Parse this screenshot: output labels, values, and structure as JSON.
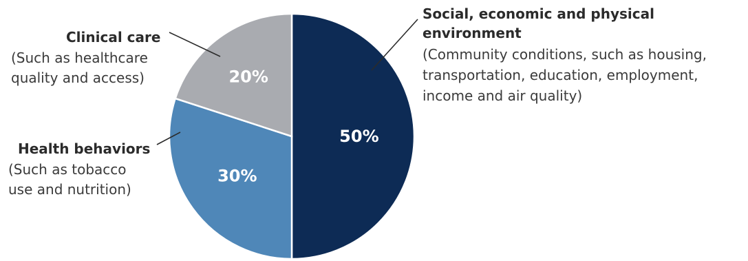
{
  "chart_data": {
    "type": "pie",
    "categories": [
      "Social, economic and physical environment",
      "Health behaviors",
      "Clinical care"
    ],
    "values": [
      50,
      30,
      20
    ],
    "value_labels": [
      "50%",
      "30%",
      "20%"
    ],
    "colors": [
      "#0d2b55",
      "#4f87b8",
      "#a9abb0"
    ],
    "slices": [
      {
        "title_lines": [
          "Social, economic and physical",
          "environment"
        ],
        "desc_lines": [
          "(Community conditions, such as housing,",
          "transportation, education, employment,",
          "income and air quality)"
        ]
      },
      {
        "title_lines": [
          "Health behaviors"
        ],
        "desc_lines": [
          "(Such as tobacco",
          "use and nutrition)"
        ]
      },
      {
        "title_lines": [
          "Clinical care"
        ],
        "desc_lines": [
          "(Such as healthcare",
          "quality and access)"
        ]
      }
    ]
  }
}
